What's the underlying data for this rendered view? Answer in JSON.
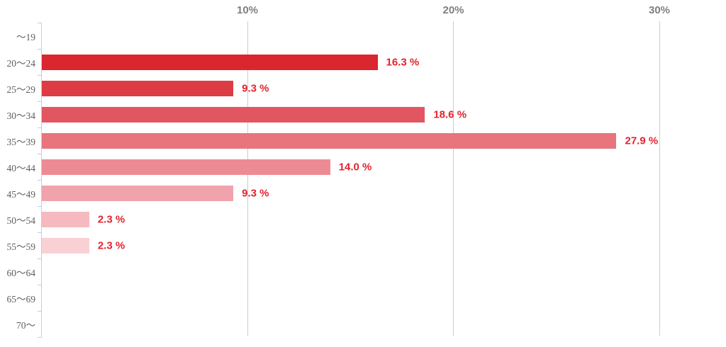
{
  "chart_data": {
    "type": "bar",
    "orientation": "horizontal",
    "title": "",
    "xlabel": "",
    "ylabel": "",
    "categories": [
      "〜19",
      "20〜24",
      "25〜29",
      "30〜34",
      "35〜39",
      "40〜44",
      "45〜49",
      "50〜54",
      "55〜59",
      "60〜64",
      "65〜69",
      "70〜"
    ],
    "values": [
      null,
      16.3,
      9.3,
      18.6,
      27.9,
      14.0,
      9.3,
      2.3,
      2.3,
      null,
      null,
      null
    ],
    "value_labels": [
      "",
      "16.3 %",
      "9.3 %",
      "18.6 %",
      "27.9 %",
      "14.0 %",
      "9.3 %",
      "2.3 %",
      "2.3 %",
      "",
      "",
      ""
    ],
    "bar_colors": [
      "",
      "#d9262f",
      "#dd3c44",
      "#e25661",
      "#e8747c",
      "#ed8b94",
      "#f1a3ab",
      "#f5b9bf",
      "#f9d1d5",
      "",
      "",
      ""
    ],
    "x_axis": {
      "ticks": [
        {
          "pct": 10,
          "label": "10%"
        },
        {
          "pct": 20,
          "label": "20%"
        },
        {
          "pct": 30,
          "label": "30%"
        }
      ]
    },
    "xlim": [
      0,
      33.2
    ],
    "grid": true,
    "legend": false
  },
  "colors": {
    "gridline": "#cccccc",
    "axis_line": "#c2cddc",
    "tick_label": "#7f7f7f",
    "category_label": "#5f5f5f",
    "value_label": "#e3232e"
  }
}
